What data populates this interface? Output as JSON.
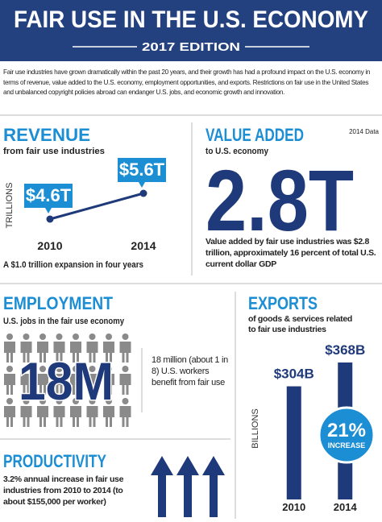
{
  "header": {
    "title": "FAIR USE IN THE U.S. ECONOMY",
    "subtitle": "2017 EDITION"
  },
  "intro": "Fair use industries have grown dramatically within the past 20 years, and their growth has had a profound impact on the U.S. economy in terms of revenue, value added to the U.S. economy, employment opportunities, and exports. Restrictions on fair use in the United States and unbalanced copyright policies abroad can endanger U.S. jobs, and economic growth and innovation.",
  "revenue": {
    "type": "line",
    "title": "REVENUE",
    "subtitle": "from fair use industries",
    "y_label": "TRILLIONS",
    "categories": [
      "2010",
      "2014"
    ],
    "values": [
      4.6,
      5.6
    ],
    "value_labels": [
      "$4.6T",
      "$5.6T"
    ],
    "color": "#1f3a7a",
    "label_color": "#1b8ed4",
    "caption": "A $1.0 trillion expansion in four years"
  },
  "value_added": {
    "title": "VALUE ADDED",
    "note": "2014 Data",
    "subtitle": "to U.S. economy",
    "figure": "2.8T",
    "caption": "Value added by fair use industries was $2.8 trillion, approximately 16 percent of total U.S. current dollar GDP"
  },
  "employment": {
    "title": "EMPLOYMENT",
    "subtitle": "U.S. jobs in the fair use economy",
    "figure": "18M",
    "caption": "18 million (about 1 in 8) U.S. workers benefit from fair use"
  },
  "productivity": {
    "title": "PRODUCTIVITY",
    "caption": "3.2% annual increase in fair use industries from 2010 to 2014 (to about $155,000 per worker)"
  },
  "exports": {
    "type": "bar",
    "title": "EXPORTS",
    "subtitle": "of goods & services related to fair use industries",
    "y_label": "BILLIONS",
    "categories": [
      "2010",
      "2014"
    ],
    "values": [
      304,
      368
    ],
    "value_labels": [
      "$304B",
      "$368B"
    ],
    "color": "#1f3a7a",
    "badge": {
      "value": "21%",
      "label": "INCREASE",
      "color": "#1b8ed4"
    }
  }
}
